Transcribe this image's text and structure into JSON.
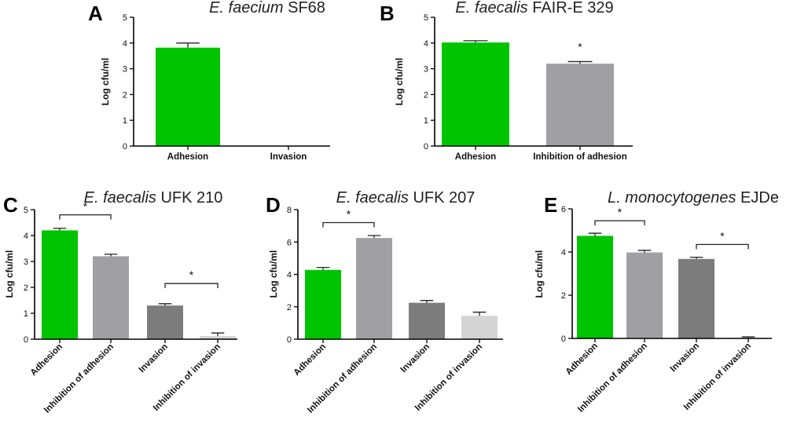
{
  "chart_data": [
    {
      "panel": "A",
      "type": "bar",
      "title_italic": "E. faecium",
      "title_rest": " SF68",
      "ylabel": "Log cfu/ml",
      "ylim": [
        0,
        5
      ],
      "yticks": [
        0,
        1,
        2,
        3,
        4,
        5
      ],
      "categories": [
        "Adhesion",
        "Invasion"
      ],
      "values": [
        3.82,
        0
      ],
      "errors": [
        0.18,
        0
      ],
      "colors": [
        "#00c400",
        "#8e8e92"
      ],
      "rotated_labels": false,
      "significance": []
    },
    {
      "panel": "B",
      "type": "bar",
      "title_italic": "E. faecalis",
      "title_rest": " FAIR-E 329",
      "ylabel": "Log cfu/ml",
      "ylim": [
        0,
        5
      ],
      "yticks": [
        0,
        1,
        2,
        3,
        4,
        5
      ],
      "categories": [
        "Adhesion",
        "Inhibition of adhesion"
      ],
      "values": [
        4.02,
        3.2
      ],
      "errors": [
        0.07,
        0.08
      ],
      "colors": [
        "#00c400",
        "#a0a0a4"
      ],
      "rotated_labels": false,
      "significance": [
        {
          "type": "star",
          "index": 1,
          "label": "*"
        }
      ]
    },
    {
      "panel": "C",
      "type": "bar",
      "title_italic": "E. faecalis",
      "title_rest": " UFK 210",
      "ylabel": "Log cfu/ml",
      "ylim": [
        0,
        5
      ],
      "yticks": [
        0,
        1,
        2,
        3,
        4,
        5
      ],
      "categories": [
        "Adhesion",
        "Inhibition of adhesion",
        "Invasion",
        "Inhibition of invasion"
      ],
      "values": [
        4.2,
        3.2,
        1.3,
        0.12
      ],
      "errors": [
        0.08,
        0.08,
        0.07,
        0.12
      ],
      "colors": [
        "#00c400",
        "#a0a0a4",
        "#7c7c7c",
        "#d4d4d4"
      ],
      "rotated_labels": true,
      "significance": [
        {
          "type": "bracket",
          "from": 0,
          "to": 1,
          "at": 4.8,
          "label": "*"
        },
        {
          "type": "bracket",
          "from": 2,
          "to": 3,
          "at": 2.15,
          "label": "*"
        }
      ]
    },
    {
      "panel": "D",
      "type": "bar",
      "title_italic": "E. faecalis",
      "title_rest": " UFK 207",
      "ylabel": "Log cfu/ml",
      "ylim": [
        0,
        8
      ],
      "yticks": [
        0,
        2,
        4,
        6,
        8
      ],
      "categories": [
        "Adhesion",
        "Inhibition of adhesion",
        "Invasion",
        "Inhibition of invasion"
      ],
      "values": [
        4.28,
        6.25,
        2.25,
        1.45
      ],
      "errors": [
        0.15,
        0.15,
        0.14,
        0.22
      ],
      "colors": [
        "#00c400",
        "#a0a0a4",
        "#7c7c7c",
        "#d4d4d4"
      ],
      "rotated_labels": true,
      "significance": [
        {
          "type": "bracket",
          "from": 0,
          "to": 1,
          "at": 7.2,
          "label": "*"
        }
      ]
    },
    {
      "panel": "E",
      "type": "bar",
      "title_italic": "L. monocytogenes",
      "title_rest": " EJDe",
      "ylabel": "Log cfu/ml",
      "ylim": [
        0,
        6
      ],
      "yticks": [
        0,
        2,
        4,
        6
      ],
      "categories": [
        "Adhesion",
        "Inhibition of adhesion",
        "Invasion",
        "Inhibition of invasion"
      ],
      "values": [
        4.75,
        3.98,
        3.68,
        0.03
      ],
      "errors": [
        0.12,
        0.1,
        0.08,
        0.04
      ],
      "colors": [
        "#00c400",
        "#a0a0a4",
        "#7c7c7c",
        "#d4d4d4"
      ],
      "rotated_labels": true,
      "significance": [
        {
          "type": "bracket",
          "from": 0,
          "to": 1,
          "at": 5.45,
          "label": "*"
        },
        {
          "type": "bracket",
          "from": 2,
          "to": 3,
          "at": 4.35,
          "label": "*"
        }
      ]
    }
  ]
}
